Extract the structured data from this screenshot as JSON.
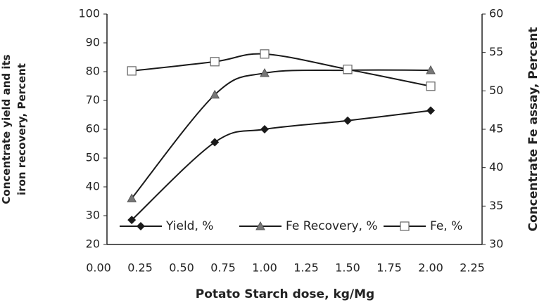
{
  "chart_data": {
    "type": "line",
    "x_label": "Potato Starch dose, kg/Mg",
    "y_label": "Concentrate yield and its iron recovery, Percent",
    "y2_label": "Concentrate Fe assay, Percent",
    "x": [
      0.2,
      0.7,
      1.0,
      1.5,
      2.0
    ],
    "xlim": [
      0,
      2.25
    ],
    "xticks": [
      {
        "value": 0,
        "label": "0.00"
      },
      {
        "value": 0.25,
        "label": "0.25"
      },
      {
        "value": 0.5,
        "label": "0.50"
      },
      {
        "value": 0.75,
        "label": "0.75"
      },
      {
        "value": 1,
        "label": "1.00"
      },
      {
        "value": 1.25,
        "label": "1.25"
      },
      {
        "value": 1.5,
        "label": "1.50"
      },
      {
        "value": 1.75,
        "label": "1.75"
      },
      {
        "value": 2,
        "label": "2.00"
      },
      {
        "value": 2.25,
        "label": "2.25"
      }
    ],
    "ylim": [
      20,
      100
    ],
    "yticks": [
      20,
      30,
      40,
      50,
      60,
      70,
      80,
      90,
      100
    ],
    "y2lim": [
      30,
      60
    ],
    "y2ticks": [
      30,
      35,
      40,
      45,
      50,
      55,
      60
    ],
    "legend": "bottom",
    "series": [
      {
        "name": "Yield, %",
        "color": "#1a1a1a",
        "marker": "diamond",
        "values": [
          28.5,
          55.5,
          60,
          63,
          66.5
        ]
      },
      {
        "name": "Fe Recovery, %",
        "color": "#1a1a1a",
        "marker": "triangle",
        "values": [
          36,
          72,
          79.5,
          80.5,
          80.5
        ]
      },
      {
        "name": "Fe, %",
        "color": "#1a1a1a",
        "marker": "square",
        "axis": "y2",
        "values": [
          52.6,
          53.8,
          54.8,
          52.8,
          50.6
        ]
      }
    ]
  }
}
